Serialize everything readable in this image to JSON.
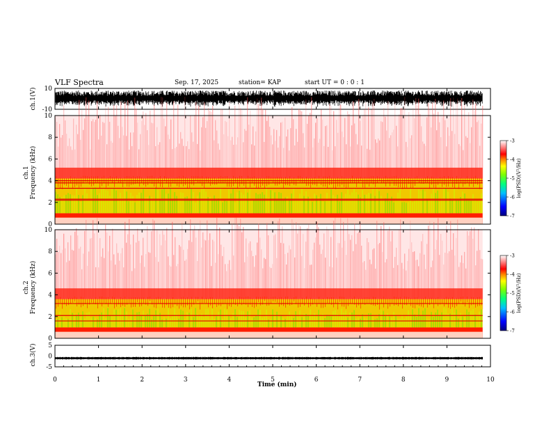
{
  "header": {
    "title": "VLF Spectra",
    "date": "Sep. 17, 2025",
    "station": "station= KAP",
    "start_ut": "start  UT =   0 : 0  : 1"
  },
  "chart_data": [
    {
      "type": "line",
      "name": "ch1-waveform",
      "ylabel": "ch.1(V)",
      "ylim": [
        -10,
        10
      ],
      "yticks": [
        "10",
        "-10"
      ],
      "xlim": [
        0,
        10
      ],
      "data_end_min": 9.82,
      "amplitude_range": [
        -8,
        8
      ]
    },
    {
      "type": "heatmap",
      "name": "ch1-spectrogram",
      "ylabel": "ch.1\nFrequency (kHz)",
      "ylim": [
        0,
        10
      ],
      "yticks": [
        "0",
        "2",
        "4",
        "6",
        "8",
        "10"
      ],
      "xlim": [
        0,
        10
      ],
      "data_end_min": 9.82,
      "bands_khz": {
        "saturated_below": 0.6,
        "green_from": 1.0,
        "green_to": 3.4,
        "yellow_to": 4.2,
        "red_to": 5.2
      },
      "lines_khz": [
        2.2,
        2.3,
        3.3,
        3.8,
        4.0
      ],
      "colorbar": {
        "label": "log(PSD)(V²/Hz)",
        "range": [
          -7,
          -3
        ],
        "ticks": [
          "-3",
          "-4",
          "-5",
          "-6",
          "-7"
        ]
      }
    },
    {
      "type": "heatmap",
      "name": "ch2-spectrogram",
      "ylabel": "ch.2\nFrequency (kHz)",
      "ylim": [
        0,
        10
      ],
      "yticks": [
        "0",
        "2",
        "4",
        "6",
        "8",
        "10"
      ],
      "xlim": [
        0,
        10
      ],
      "data_end_min": 9.82,
      "bands_khz": {
        "saturated_below": 0.6,
        "green_from": 1.0,
        "green_to": 2.8,
        "yellow_to": 3.6,
        "red_to": 4.6
      },
      "lines_khz": [
        1.6,
        2.1,
        3.2
      ],
      "colorbar": {
        "label": "log(PSD)(V²/Hz)",
        "range": [
          -7,
          -3
        ],
        "ticks": [
          "-3",
          "-4",
          "-5",
          "-6",
          "-7"
        ]
      }
    },
    {
      "type": "line",
      "name": "ch3-waveform",
      "ylabel": "ch.3(V)",
      "ylim": [
        -5,
        5
      ],
      "yticks": [
        "5",
        "0",
        "-5"
      ],
      "xlim": [
        0,
        10
      ],
      "data_end_min": 9.82,
      "level": -1.0,
      "amplitude": 0.6,
      "xlabel": "Time (min)",
      "xticks": [
        "0",
        "1",
        "2",
        "3",
        "4",
        "5",
        "6",
        "7",
        "8",
        "9",
        "10"
      ]
    }
  ]
}
